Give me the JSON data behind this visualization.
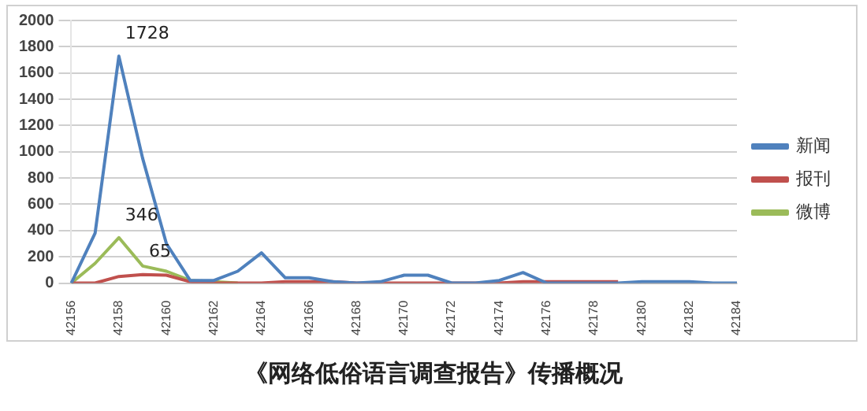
{
  "chart_data": {
    "type": "line",
    "categories": [
      "42156",
      null,
      "42158",
      null,
      "42160",
      null,
      "42162",
      null,
      "42164",
      null,
      "42166",
      null,
      "42168",
      null,
      "42170",
      null,
      "42172",
      null,
      "42174",
      null,
      "42176",
      null,
      "42178",
      null,
      "42180",
      null,
      "42182",
      null,
      "42184"
    ],
    "series": [
      {
        "name": "新闻",
        "color": "#4f81bd",
        "values": [
          0,
          380,
          1728,
          950,
          300,
          20,
          20,
          90,
          230,
          40,
          40,
          10,
          0,
          10,
          60,
          60,
          0,
          0,
          20,
          80,
          0,
          0,
          0,
          0,
          10,
          10,
          10,
          0,
          0
        ],
        "value_labels": [
          null,
          null,
          "1728",
          null,
          null,
          null,
          null,
          null,
          null,
          null,
          null,
          null,
          null,
          null,
          null,
          null,
          null,
          null,
          null,
          null,
          null,
          null,
          null,
          null,
          null,
          null,
          null,
          null,
          null
        ]
      },
      {
        "name": "报刊",
        "color": "#c0504d",
        "values": [
          0,
          0,
          50,
          65,
          60,
          10,
          0,
          0,
          0,
          10,
          10,
          10,
          0,
          0,
          0,
          0,
          0,
          0,
          0,
          10,
          10,
          10,
          10,
          10,
          null,
          null,
          null,
          null,
          null
        ],
        "value_labels": [
          null,
          null,
          null,
          "65",
          null,
          null,
          null,
          null,
          null,
          null,
          null,
          null,
          null,
          null,
          null,
          null,
          null,
          null,
          null,
          null,
          null,
          null,
          null,
          null,
          null,
          null,
          null,
          null,
          null
        ]
      },
      {
        "name": "微博",
        "color": "#9bbb59",
        "values": [
          0,
          150,
          346,
          130,
          90,
          20,
          10,
          0,
          null,
          null,
          null,
          null,
          null,
          null,
          null,
          null,
          null,
          null,
          null,
          null,
          null,
          null,
          null,
          null,
          null,
          null,
          null,
          null,
          null
        ],
        "value_labels": [
          null,
          null,
          "346",
          null,
          null,
          null,
          null,
          null,
          null,
          null,
          null,
          null,
          null,
          null,
          null,
          null,
          null,
          null,
          null,
          null,
          null,
          null,
          null,
          null,
          null,
          null,
          null,
          null,
          null
        ]
      }
    ],
    "ylim": [
      0,
      2000
    ],
    "yticks": [
      0,
      200,
      400,
      600,
      800,
      1000,
      1200,
      1400,
      1600,
      1800,
      2000
    ],
    "grid": "y",
    "legend": "right",
    "marker": "none",
    "line_style": "solid",
    "annotations": [
      "《网络低俗语言调查报告》传播概况"
    ]
  }
}
